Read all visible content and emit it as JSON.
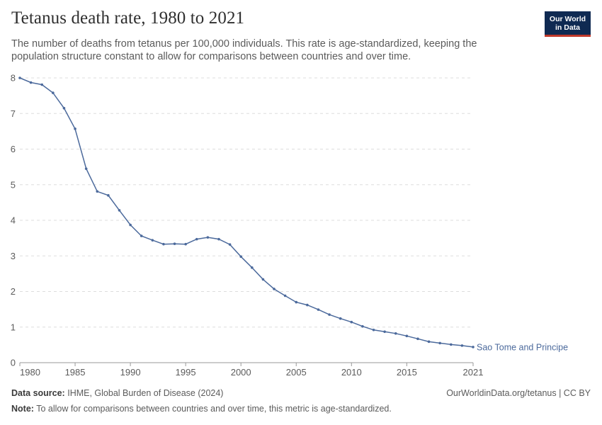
{
  "header": {
    "title": "Tetanus death rate, 1980 to 2021",
    "subtitle": "The number of deaths from tetanus per 100,000 individuals. This rate is age-standardized, keeping the population structure constant to allow for comparisons between countries and over time.",
    "logo_line1": "Our World",
    "logo_line2": "in Data"
  },
  "footer": {
    "source_label": "Data source:",
    "source_text": "IHME, Global Burden of Disease (2024)",
    "url_text": "OurWorldinData.org/tetanus | CC BY",
    "note_label": "Note:",
    "note_text": "To allow for comparisons between countries and over time, this metric is age-standardized."
  },
  "colors": {
    "series": "#4c6a9c",
    "grid": "#dddddd",
    "axis": "#999999"
  },
  "chart_data": {
    "type": "line",
    "title": "Tetanus death rate, 1980 to 2021",
    "xlim": [
      1980,
      2021
    ],
    "ylim": [
      0,
      8
    ],
    "x_ticks": [
      "1980",
      "1985",
      "1990",
      "1995",
      "2000",
      "2005",
      "2010",
      "2015",
      "2021"
    ],
    "y_ticks": [
      "0",
      "1",
      "2",
      "3",
      "4",
      "5",
      "6",
      "7",
      "8"
    ],
    "grid": "horizontal-dashed",
    "series": [
      {
        "name": "Sao Tome and Principe",
        "x": [
          1980,
          1981,
          1982,
          1983,
          1984,
          1985,
          1986,
          1987,
          1988,
          1989,
          1990,
          1991,
          1992,
          1993,
          1994,
          1995,
          1996,
          1997,
          1998,
          1999,
          2000,
          2001,
          2002,
          2003,
          2004,
          2005,
          2006,
          2007,
          2008,
          2009,
          2010,
          2011,
          2012,
          2013,
          2014,
          2015,
          2016,
          2017,
          2018,
          2019,
          2020,
          2021
        ],
        "values": [
          8.0,
          7.87,
          7.81,
          7.58,
          7.15,
          6.57,
          5.45,
          4.81,
          4.7,
          4.28,
          3.87,
          3.56,
          3.44,
          3.33,
          3.34,
          3.33,
          3.47,
          3.52,
          3.47,
          3.32,
          2.98,
          2.67,
          2.34,
          2.07,
          1.88,
          1.7,
          1.62,
          1.49,
          1.35,
          1.24,
          1.14,
          1.02,
          0.92,
          0.87,
          0.82,
          0.75,
          0.67,
          0.59,
          0.55,
          0.51,
          0.48,
          0.44
        ]
      }
    ]
  }
}
